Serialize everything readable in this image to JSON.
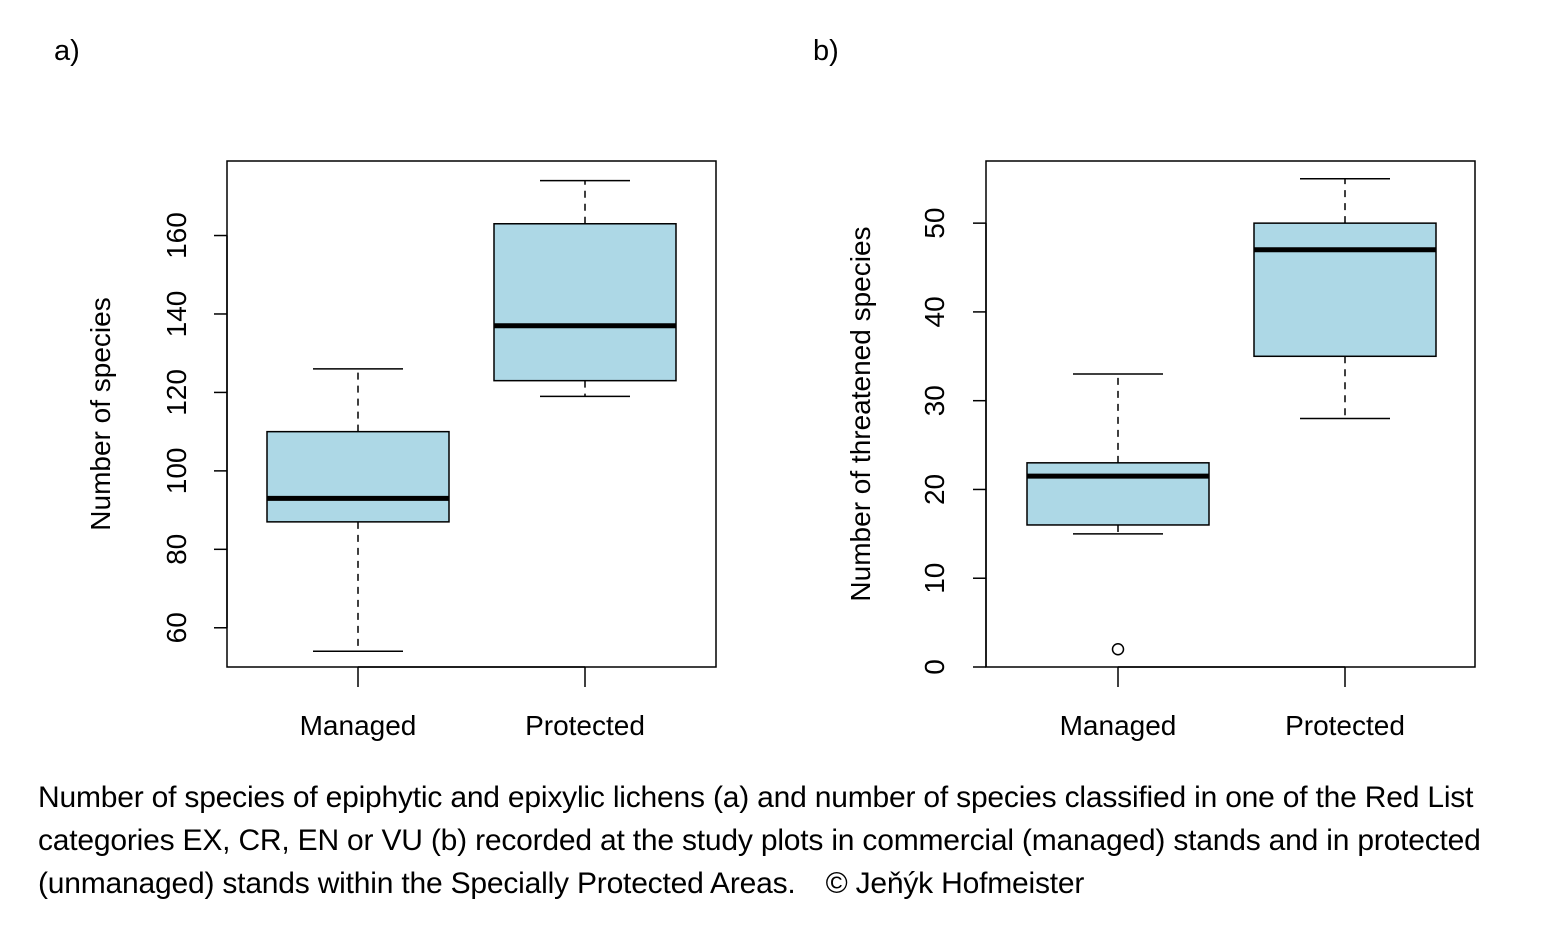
{
  "chart_data": [
    {
      "type": "box",
      "panel_label": "a)",
      "ylabel": "Number of species",
      "ylim": [
        50,
        179
      ],
      "yticks": [
        60,
        80,
        100,
        120,
        140,
        160
      ],
      "categories": [
        "Managed",
        "Protected"
      ],
      "box_color": "#add8e6",
      "boxes": [
        {
          "category": "Managed",
          "whisker_low": 54,
          "q1": 87,
          "median": 93,
          "q3": 110,
          "whisker_high": 126,
          "outliers": []
        },
        {
          "category": "Protected",
          "whisker_low": 119,
          "q1": 123,
          "median": 137,
          "q3": 163,
          "whisker_high": 174,
          "outliers": []
        }
      ]
    },
    {
      "type": "box",
      "panel_label": "b)",
      "ylabel": "Number of threatened species",
      "ylim": [
        0,
        57
      ],
      "yticks": [
        0,
        10,
        20,
        30,
        40,
        50
      ],
      "categories": [
        "Managed",
        "Protected"
      ],
      "box_color": "#add8e6",
      "boxes": [
        {
          "category": "Managed",
          "whisker_low": 15,
          "q1": 16,
          "median": 21.5,
          "q3": 23,
          "whisker_high": 33,
          "outliers": [
            2
          ]
        },
        {
          "category": "Protected",
          "whisker_low": 28,
          "q1": 35,
          "median": 47,
          "q3": 50,
          "whisker_high": 55,
          "outliers": []
        }
      ]
    }
  ],
  "caption": {
    "text": "Number of species of epiphytic and epixylic lichens (a) and number of species classified in one of the Red List categories EX, CR, EN or VU (b) recorded at the study plots in commercial (managed) stands and in protected (unmanaged) stands within the Specially Protected Areas.",
    "credit": "© Jeňýk Hofmeister"
  }
}
